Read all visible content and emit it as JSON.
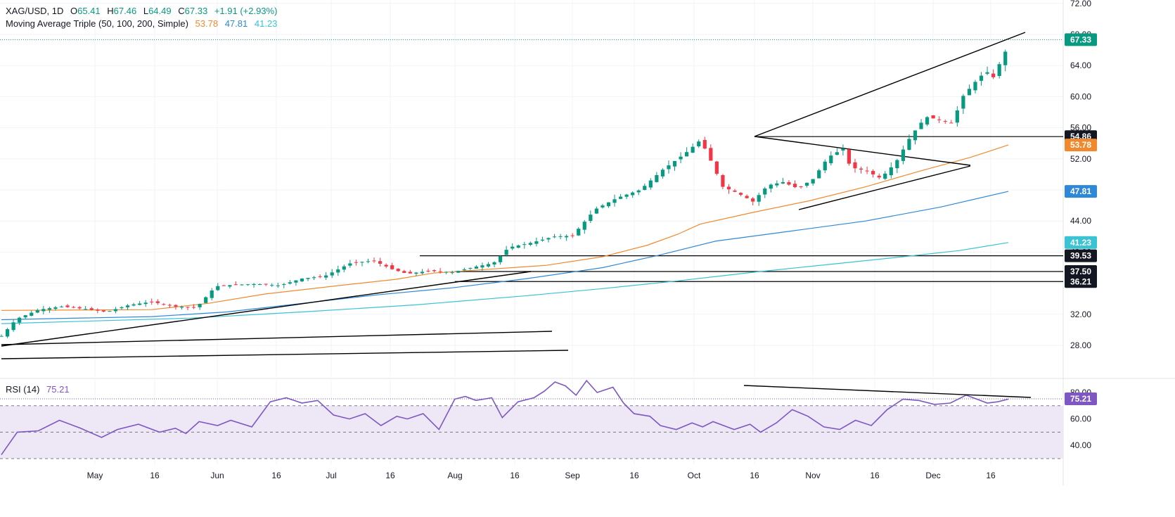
{
  "header": {
    "symbol": "XAG/USD, 1D",
    "open_label": "O",
    "open": "65.41",
    "high_label": "H",
    "high": "67.46",
    "low_label": "L",
    "low": "64.49",
    "close_label": "C",
    "close": "67.33",
    "change": "+1.91 (+2.93%)",
    "ma_label": "Moving Average Triple (50, 100, 200, Simple)",
    "ma_values": [
      "53.78",
      "47.81",
      "41.23"
    ],
    "rsi_label": "RSI (14)",
    "rsi_value": "75.21"
  },
  "colors": {
    "up": "#089981",
    "down": "#f23645",
    "ma50": "#f0892e",
    "ma100": "#2e88d6",
    "ma200": "#39c3d3",
    "rsi": "#7e57c2",
    "rsi_band": "#ede7f6",
    "trendline": "#000000"
  },
  "chart_data": {
    "type": "candlestick",
    "instrument": "XAG/USD",
    "timeframe": "1D",
    "ylim": [
      26,
      72
    ],
    "y_ticks": [
      28,
      32,
      36,
      40,
      44,
      48,
      52,
      56,
      60,
      64,
      68,
      72
    ],
    "x_ticks": [
      "May",
      "16",
      "Jun",
      "16",
      "Jul",
      "16",
      "Aug",
      "16",
      "Sep",
      "16",
      "Oct",
      "16",
      "Nov",
      "16",
      "Dec",
      "16"
    ],
    "last_price_label": "67.33",
    "horizontal_levels": [
      54.86,
      39.53,
      37.5,
      36.21
    ],
    "ma_series": [
      {
        "name": "MA 50",
        "last": 53.78,
        "color": "#f0892e"
      },
      {
        "name": "MA 100",
        "last": 47.81,
        "color": "#2e88d6"
      },
      {
        "name": "MA 200",
        "last": 41.23,
        "color": "#39c3d3"
      }
    ],
    "price_labels": [
      "54.86",
      "53.78",
      "47.81",
      "41.23",
      "39.53",
      "37.50",
      "36.21"
    ],
    "rsi": {
      "period": 14,
      "last": 75.21,
      "ylim": [
        30,
        90
      ],
      "y_ticks": [
        40,
        60,
        80
      ],
      "bands": [
        30,
        50,
        70
      ]
    }
  }
}
